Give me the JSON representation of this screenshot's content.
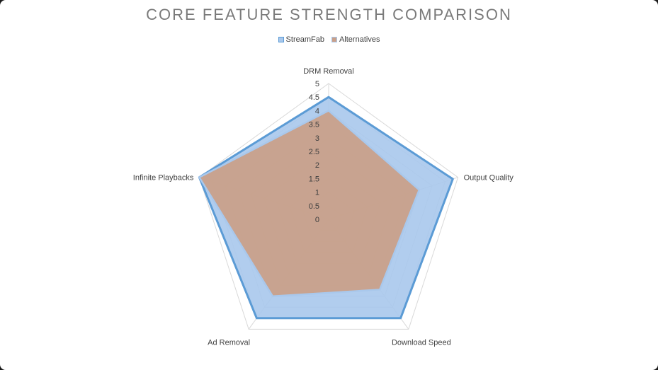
{
  "chart_data": {
    "type": "radar",
    "title": "CORE FEATURE STRENGTH COMPARISON",
    "categories": [
      "DRM Removal",
      "Output Quality",
      "Download Speed",
      "Ad Removal",
      "Infinite Playbacks"
    ],
    "series": [
      {
        "name": "StreamFab",
        "values": [
          4.5,
          4.8,
          4.5,
          4.5,
          5
        ],
        "fill": "#a9c8ec",
        "stroke": "#5b9bd5"
      },
      {
        "name": "Alternatives",
        "values": [
          4,
          3.5,
          3.2,
          3.5,
          5
        ],
        "fill": "#c9a08a",
        "stroke": "#a9c8ec"
      }
    ],
    "rlim": [
      0,
      5
    ],
    "tick_step": 0.5,
    "tick_labels": [
      "0",
      "0.5",
      "1",
      "1.5",
      "2",
      "2.5",
      "3",
      "3.5",
      "4",
      "4.5",
      "5"
    ],
    "grid": true,
    "legend": "top"
  }
}
